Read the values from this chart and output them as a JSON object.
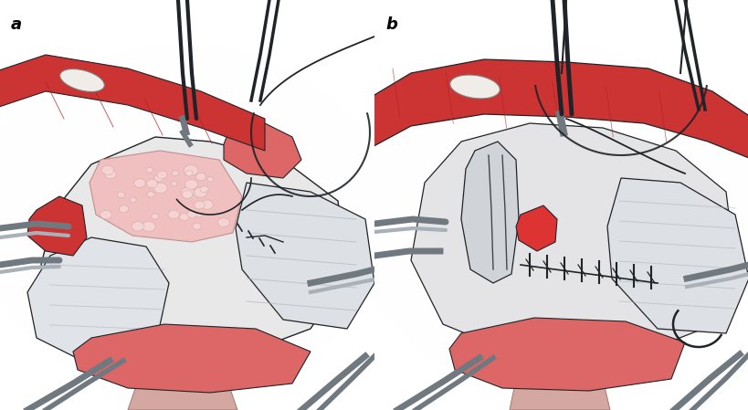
{
  "fig_width": 8.2,
  "fig_height": 4.49,
  "dpi": 100,
  "bg_color": "#ffffff",
  "panel_bg": "#f8f2f2",
  "pink_glow": "#f0d8d8",
  "red_muscle": "#cc3333",
  "red_muscle_light": "#dd6666",
  "red_muscle_dark": "#aa2222",
  "pink_fat": "#f0c0c0",
  "pink_fat_light": "#f8d8d8",
  "white_fascia": "#e8e8e8",
  "gray_fascia": "#c8ccd0",
  "light_gray": "#d8dcde",
  "dark_line": "#202428",
  "instrument_gray": "#707880",
  "instrument_light": "#a8b0b8",
  "flesh_bottom": "#d4a8a0",
  "flesh_light": "#e8c0b8",
  "label_a": "a",
  "label_b": "b",
  "label_size": 13
}
